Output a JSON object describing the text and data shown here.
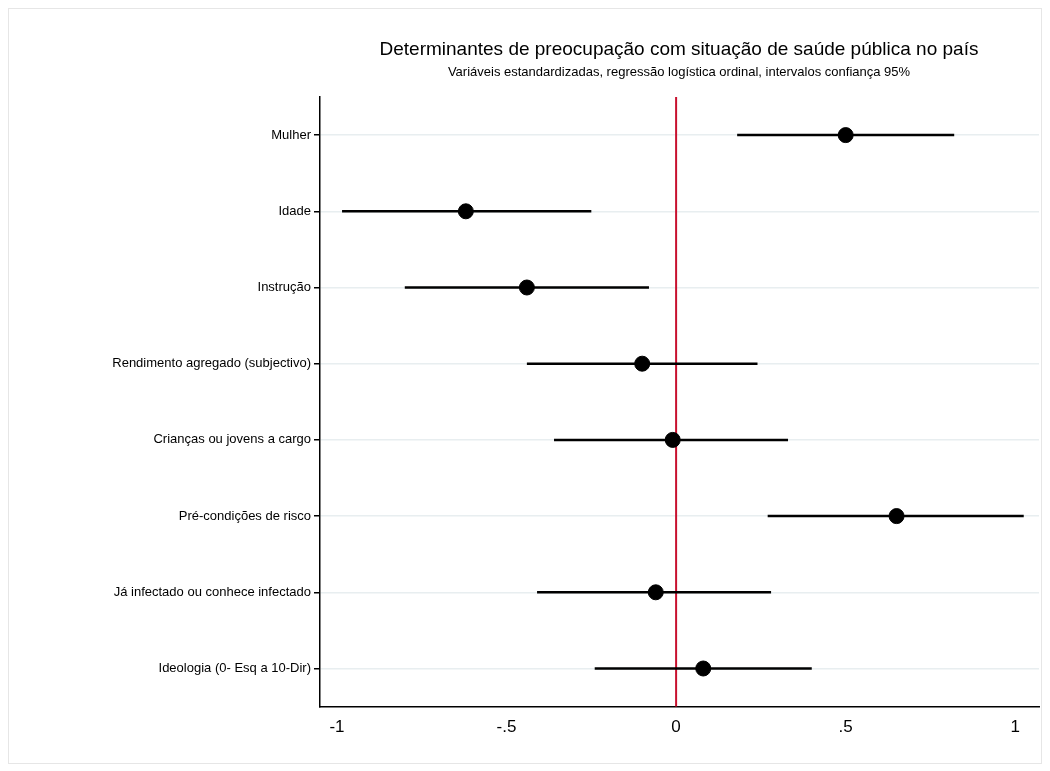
{
  "chart_data": {
    "type": "scatter",
    "orientation": "horizontal",
    "title": "Determinantes de preocupação com situação de saúde pública no país",
    "subtitle": "Variáveis estandardizadas, regressão logística ordinal, intervalos confiança 95%",
    "categories": [
      "Mulher",
      "Idade",
      "Instrução",
      "Rendimento agregado (subjectivo)",
      "Crianças ou jovens a cargo",
      "Pré-condições de risco",
      "Já infectado ou conhece infectado",
      "Ideologia (0- Esq a 10-Dir)"
    ],
    "values": [
      0.5,
      -0.62,
      -0.44,
      -0.1,
      -0.01,
      0.65,
      -0.06,
      0.08
    ],
    "errors": [
      [
        0.18,
        0.82
      ],
      [
        -0.985,
        -0.25
      ],
      [
        -0.8,
        -0.08
      ],
      [
        -0.44,
        0.24
      ],
      [
        -0.36,
        0.33
      ],
      [
        0.27,
        1.025
      ],
      [
        -0.41,
        0.28
      ],
      [
        -0.24,
        0.4
      ]
    ],
    "color": "#000000",
    "marker": "circle",
    "xlim": [
      -1.05,
      1.07
    ],
    "xticks": [
      {
        "value": -1,
        "label": "-1"
      },
      {
        "value": -0.5,
        "label": "-.5"
      },
      {
        "value": 0,
        "label": "0"
      },
      {
        "value": 0.5,
        "label": ".5"
      },
      {
        "value": 1,
        "label": "1"
      }
    ],
    "ref_lines": [
      {
        "axis": "x",
        "value": 0,
        "color": "#c8102e"
      }
    ],
    "grid": "y",
    "legend": false
  }
}
